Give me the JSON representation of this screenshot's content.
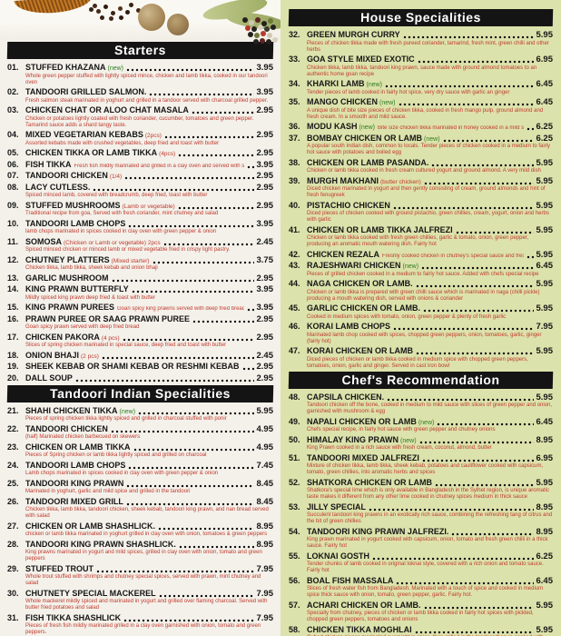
{
  "colors": {
    "header_bg": "#141414",
    "header_text": "#ffffff",
    "title_text": "#151515",
    "desc_text": "#c03a2e",
    "new_text": "#2e7d22",
    "price_text": "#151515",
    "left_bg": "#f3f1ea",
    "right_bg": "#dce2ab"
  },
  "decor": {
    "photo": "spices-photo"
  },
  "sections": [
    {
      "id": "starters",
      "column": "left",
      "title": "Starters",
      "items": [
        {
          "num": "01.",
          "title": "STUFFED KHAZANA",
          "note": "(new)",
          "new": true,
          "price": "3.95",
          "desc": "Whole green pepper stuffed with lightly spiced mince, chicken and lamb tikka, cooked in our tandoori oven"
        },
        {
          "num": "02.",
          "title": "TANDOORI GRILLED SALMON.",
          "price": "3.95",
          "desc": "Fresh salmon steak marinated in yoghurt and grilled in a tandoor served with charcoal grilled pepper."
        },
        {
          "num": "03.",
          "title": "CHICKEN CHAT OR ALOO CHAT MASALA",
          "price": "2.95",
          "desc": "Chicken or potatoes lightly coated with fresh coriander, cucumber, tomatoes and green pepper. Tamarind sauce adds a shard tangy taste."
        },
        {
          "num": "04.",
          "title": "MIXED VEGETARIAN KEBABS",
          "note": "(2pcs)",
          "price": "2.95",
          "desc": "Assorted kebabs made with crushed vegetables, deep fried and toast with butter"
        },
        {
          "num": "05.",
          "title": "CHICKEN TIKKA OR LAMB TIKKA",
          "note": "(4pcs)",
          "price": "2.95"
        },
        {
          "num": "06.",
          "title": "FISH TIKKA",
          "inline": "Fresh fish mildly marinated and grilled in a clay oven and served with salad",
          "price": "3.95"
        },
        {
          "num": "07.",
          "title": "TANDOORI CHICKEN",
          "note": "(1/4)",
          "price": "2.95"
        },
        {
          "num": "08.",
          "title": "LACY CUTLESS.",
          "price": "2.95",
          "desc": "Spiced minced lamb, covered with breadcrumb, deep fried, toast with butter"
        },
        {
          "num": "09.",
          "title": "STUFFED MUSHROOMS",
          "note": "(Lamb or vegetable)",
          "price": "2.95",
          "desc": "Traditional recipe from goa, Served with fresh coriander, mint chutney and salad"
        },
        {
          "num": "10.",
          "title": "TANDOORI LAMB CHOPS",
          "price": "3.95",
          "desc": "lamb chops marinated in spices cooked in clay oven with green pepper & onion"
        },
        {
          "num": "11.",
          "title": "SOMOSA",
          "note": "(Chicken or Lamb or vegetable) 2pcs",
          "price": "2.45",
          "desc": "Spiced minced chicken or minced lamb or mixed vegetable fried in crispy light pastry."
        },
        {
          "num": "12.",
          "title": "CHUTNEY PLATTERS",
          "note": "(Mixed starter)",
          "price": "3.75",
          "desc": "Chicken tikka, lamb tikka, sheek kebab and onion bhaji"
        },
        {
          "num": "13.",
          "title": "GARLIC MUSHROOM",
          "price": "2.95"
        },
        {
          "num": "14.",
          "title": "KING PRAWN BUTTERFLY",
          "price": "3.95",
          "desc": "Mildly spiced king prawn deep fried & toast with butter"
        },
        {
          "num": "15.",
          "title": "KING PRAWN PUREES",
          "inline": "Goan spicy king prawns served with deep fried bread",
          "price": "3.95"
        },
        {
          "num": "16.",
          "title": "PRAWN PUREE OR SAAG PRAWN PUREE",
          "price": "2.95",
          "desc": "Goan spicy prawn served with deep fried bread"
        },
        {
          "num": "17.",
          "title": "CHICKEN PAKORA",
          "note": "(4 pcs)",
          "price": "2.95",
          "desc": "Slices of spring chicken marinated in special sauce, deep fried and toast with butter"
        },
        {
          "num": "18.",
          "title": "ONION BHAJI",
          "note": "(2 pcs)",
          "price": "2.45"
        },
        {
          "num": "19.",
          "title": "SHEEK KEBAB OR SHAMI KEBAB OR RESHMI KEBAB",
          "price": "2.95"
        },
        {
          "num": "20.",
          "title": "DALL SOUP",
          "price": "2.95"
        }
      ]
    },
    {
      "id": "tandoori-indian-specialities",
      "column": "left",
      "title": "Tandoori Indian Specialities",
      "items": [
        {
          "num": "21.",
          "title": "SHAHI CHICKEN TIKKA",
          "note": "(new)",
          "new": true,
          "price": "5.95",
          "desc": "Pieces of spring chicken tikka lightly spiced and grilled in charcoal stuffed with ponir"
        },
        {
          "num": "22.",
          "title": "TANDOORI CHICKEN",
          "price": "4.95",
          "desc": "(half) Marinated chicken barbecued on skewers"
        },
        {
          "num": "23.",
          "title": "CHICKEN OR LAMB TIKKA",
          "price": "4.95",
          "desc": "Pieces of Spring chicken or lamb tikka lightly spiced and grilled on charcoal"
        },
        {
          "num": "24.",
          "title": "TANDOORI LAMB CHOPS",
          "price": "7.45",
          "desc": "Lamb chops marinated in spices cooked in clay oven with green pepper & onion"
        },
        {
          "num": "25.",
          "title": "TANDOORI KING PRAWN",
          "price": "8.45",
          "desc": "Marinated in yoghurt, garlic and mild spice and grilled in the tandoori"
        },
        {
          "num": "26.",
          "title": "TANDOORI MIXED GRILL",
          "price": "8.45",
          "desc": "Chicken tikka, lamb tikka, tandoori chicken, sheek kebab, tandoori king prawn, and nan bread served with salad"
        },
        {
          "num": "27.",
          "title": "CHICKEN OR LAMB SHASHLICK.",
          "price": "8.95",
          "desc": "chicken or lamb tikka marinated in yoghurt grilled in clay oven with onion, tomatoes & green peppers"
        },
        {
          "num": "28.",
          "title": "TANDOORI KING PRAWN SHASHLICK.",
          "price": "8.95",
          "desc": "King prawns marinated in yogurt and mild spices, grilled in clay oven with onion, tomato and green peppers"
        },
        {
          "num": "29.",
          "title": "STUFFED TROUT",
          "price": "7.95",
          "desc": "Whole trout stuffed with shrimps and chutney special spices, served with prawn, mint chutney and salad"
        },
        {
          "num": "30.",
          "title": "CHUTNETY SPECIAL MACKEREL",
          "price": "7.95",
          "desc": "Whole mackerel mildly spiced and marinated in yogurt and grilled over flaming charcoal. Served with butter fried potatoes and salad"
        },
        {
          "num": "31.",
          "title": "FISH TIKKA SHASHLICK",
          "price": "7.95",
          "desc": "Pieces of fresh fish mildly marinated grilled in a clay oven garnished with onion, tomato and green peppers."
        }
      ]
    },
    {
      "id": "house-specialities",
      "column": "right",
      "title": "House Specialities",
      "items": [
        {
          "num": "32.",
          "title": "GREEN MURGH CURRY",
          "price": "5.95",
          "desc": "Pieces of chicken tikka made with fresh pureed coriander, tamarind, fresh mint, green chilli and other herbs"
        },
        {
          "num": "33.",
          "title": "GOA STYLE MIXED EXOTIC",
          "price": "6.95",
          "desc": "Chicken tikka, lamb tikka, tandoori king prawn, sauce made with ground almond tomatoes to an authentic home goan recipe"
        },
        {
          "num": "34.",
          "title": "KHARKI LAMB",
          "note": "(new)",
          "new": true,
          "price": "6.45",
          "desc": "Tender pieces of lamb cooked in fairly hot spice, very dry sauce with garlic an ginger"
        },
        {
          "num": "35.",
          "title": "MANGO CHICKEN",
          "note": "(new)",
          "new": true,
          "price": "6.45",
          "desc": "A unique dish of bite size pieces of chicken tikka, cooked in fresh mango pulp, ground almond and fresh cream. In a smooth and mild sauce."
        },
        {
          "num": "36.",
          "title": "MODU KASH",
          "note": "(new)",
          "new": true,
          "inline": "Bite size chicken tikka marinated in honey cooked in a mild sauce",
          "price": "6.25"
        },
        {
          "num": "37.",
          "title": "BOMBAY CHICKEN OR LAMB",
          "note": "(new)",
          "new": true,
          "price": "6.25",
          "desc": "A popular south Indian dish, common to locals. Tender pieces of chicken cooked in a medium to fairly hot sauce with potatoes and boiled egg"
        },
        {
          "num": "38.",
          "title": "CHICKEN OR LAMB PASANDA.",
          "price": "5.95",
          "desc": "Chicken or lamb tikka cooked in fresh cream cultured yogurt and ground almond. A very mild dish"
        },
        {
          "num": "39.",
          "title": "MURGH MAKHANI",
          "note": "(butter chicken)",
          "price": "5.95",
          "desc": "Diced chicken marinated in yogurt and then gently consisting of cream, ground almonds and hint of fresh fenugreek"
        },
        {
          "num": "40.",
          "title": "PISTACHIO CHICKEN",
          "price": "5.95",
          "desc": "Diced pieces of chicken cooked with ground pistachio, green chillies, cream, yogurt, onion and herbs with garlic"
        },
        {
          "num": "41.",
          "title": "CHICKEN OR LAMB TIKKA JALFREZI",
          "price": "5.95",
          "desc": "Chicken or lamb tikka cooked with fresh green chillies, garlic & tomato, onion, green pepper, producing an aromatic mouth watering dish. Fairly hot"
        },
        {
          "num": "42.",
          "title": "CHICKEN REZALA",
          "inline": "Freshly cooked chicken in chutney's special sauce and fresh herbs",
          "price": "5.95"
        },
        {
          "num": "43.",
          "title": "RAJESHWARI CHICKEN",
          "note": "(new)",
          "new": true,
          "price": "6.45",
          "desc": "Pieces of grilled chicken cooked in a medium to fairly hot sauce. Added with chefs special recipe"
        },
        {
          "num": "44.",
          "title": "NAGA CHICKEN OR LAMB.",
          "price": "5.95",
          "desc": "Chicken or lamb tikka is prepared with green chilli sauce which is marinated in naga (chilli pickle) producing a mouth watering dish, served with onions & coriander"
        },
        {
          "num": "45.",
          "title": "GARLIC CHICKEN OR LAMB.",
          "price": "5.95",
          "desc": "Cooked in medium spices with tomato, onion, green pepper & plenty of fresh garlic"
        },
        {
          "num": "46.",
          "title": "KORAI LAMB CHOPS",
          "price": "7.95",
          "desc": "Marinated lamb chop cooked with spices, chopped green peppers, onion, tomatoes, garlic, ginger (fairly hot)"
        },
        {
          "num": "47.",
          "title": "KORAI CHICKEN OR LAMB",
          "price": "5.95",
          "desc": "Diced pieces of chicken or lamb tikka cooked in medium spice with chopped green peppers, tomatoes, onion, garlic and ginger. Served in cast iron bowl"
        }
      ]
    },
    {
      "id": "chefs-recommendation",
      "column": "right",
      "title": "Chef's Recommendation",
      "items": [
        {
          "num": "48.",
          "title": "CAPSILA CHICKEN.",
          "price": "5.95",
          "desc": "Tandoori chicken off the bone, cooked in medium to mild sauce with slices of green pepper and onion, garnished with mushroom & egg"
        },
        {
          "num": "49.",
          "title": "NAPALI CHICKEN OR LAMB",
          "note": "(new)",
          "new": true,
          "price": "6.45",
          "desc": "Chefs special recipe, in fairly hot sauce with green pepper and chutney onions"
        },
        {
          "num": "50.",
          "title": "HIMALAY KING PRAWN",
          "note": "(new)",
          "new": true,
          "price": "8.95",
          "desc": "King Prawn cooked in a rich sauce with fresh cream, coconut, almond, butter"
        },
        {
          "num": "51.",
          "title": "TANDOORI MIXED JALFREZI",
          "price": "6.95",
          "desc": "Mixture of chicken tikka, lamb tikka, sheek kebab, potatoes and cauliflower cooked with capsicum, tomato, green chillies, into aromatic herbs and spices"
        },
        {
          "num": "52.",
          "title": "SHATKORA CHICKEN OR LAMB",
          "price": "5.95",
          "desc": "Shatkora's special lime which is only available in Bangladesh in the Sylhet region, is unique aromatic taste makes it different from any other lime cooked in chutney spices medium in thick sauce"
        },
        {
          "num": "53.",
          "title": "JILLY SPECIAL",
          "price": "8.95",
          "desc": "Succulent tandoori king prawns in an exotically rich sauce, combining the refreshing tang of citrus and the bit of green chillies"
        },
        {
          "num": "54.",
          "title": "TANDOORI KING PRAWN JALFREZI.",
          "price": "8.95",
          "desc": "King prawn marinated in yogurt cooked with capsicum, onion, tomato and fresh green chilli in a thick sauce. Fairly hot"
        },
        {
          "num": "55.",
          "title": "LOKNAI GOSTH",
          "price": "6.25",
          "desc": "Tender chunks of lamb cooked in original loknai style, covered with a rich onion and tomato sauce. Fairly hot"
        },
        {
          "num": "56.",
          "title": "BOAL FISH MASSALA",
          "price": "6.45",
          "desc": "Slices of fresh water fish from Bangladesh. Marinated with a touch of spice and cooked in medium spice thick sauce with onion, tomato, green pepper, garlic. Fairly hot."
        },
        {
          "num": "57.",
          "title": "ACHARI CHICKEN OR LAMB.",
          "price": "5.95",
          "desc": "Specially from chutney, pieces of chicken or lamb tikka cooked in fairly hot spices with pickled, chopped green peppers, tomatoes and onions"
        },
        {
          "num": "58.",
          "title": "CHICKEN TIKKA MOGHLAI",
          "price": "5.95",
          "desc": "Cubed chicken pieces marinated overnight in spice, then grilled in the tandoor then re-cooked with mince lamb in a thick fragrent sauce of fresh coriander, ginger, garlic and herbs."
        }
      ]
    }
  ]
}
